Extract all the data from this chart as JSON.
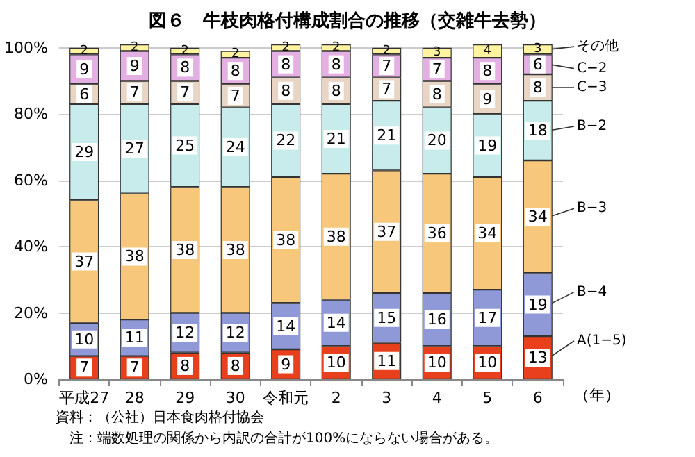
{
  "chart_data": {
    "type": "bar",
    "stacked": true,
    "title": "図６　牛枝肉格付構成割合の推移（交雑牛去勢）",
    "xlabel": "（年）",
    "categories": [
      "平成27",
      "28",
      "29",
      "30",
      "令和元",
      "2",
      "3",
      "4",
      "5",
      "6"
    ],
    "series": [
      {
        "name": "A(1−5)",
        "color": "#e8401c",
        "values": [
          7,
          7,
          8,
          8,
          9,
          10,
          11,
          10,
          10,
          13
        ]
      },
      {
        "name": "B−4",
        "color": "#8f99d8",
        "values": [
          10,
          11,
          12,
          12,
          14,
          14,
          15,
          16,
          17,
          19
        ]
      },
      {
        "name": "B−3",
        "color": "#f7c77c",
        "values": [
          37,
          38,
          38,
          38,
          38,
          38,
          37,
          36,
          34,
          34
        ]
      },
      {
        "name": "B−2",
        "color": "#c8ecec",
        "values": [
          29,
          27,
          25,
          24,
          22,
          21,
          21,
          20,
          19,
          18
        ]
      },
      {
        "name": "C−3",
        "color": "#e8d5c4",
        "values": [
          6,
          7,
          7,
          7,
          8,
          8,
          7,
          8,
          9,
          8
        ]
      },
      {
        "name": "C−2",
        "color": "#e4b0e4",
        "values": [
          9,
          9,
          8,
          8,
          8,
          8,
          7,
          7,
          8,
          6
        ]
      },
      {
        "name": "その他",
        "color": "#fff3a0",
        "values": [
          2,
          2,
          2,
          2,
          2,
          2,
          2,
          3,
          4,
          3
        ]
      }
    ],
    "ylim": [
      0,
      101
    ],
    "yticks": [
      {
        "value": 0,
        "label": "0%"
      },
      {
        "value": 20,
        "label": "20%"
      },
      {
        "value": 40,
        "label": "40%"
      },
      {
        "value": 60,
        "label": "60%"
      },
      {
        "value": 80,
        "label": "80%"
      },
      {
        "value": 100,
        "label": "100%"
      }
    ],
    "grid": "y",
    "legend": "right",
    "data_labels": true,
    "annotations": [
      "資料：（公社）日本食肉格付協会",
      "注：端数処理の関係から内訳の合計が100%にならない場合がある。"
    ]
  }
}
